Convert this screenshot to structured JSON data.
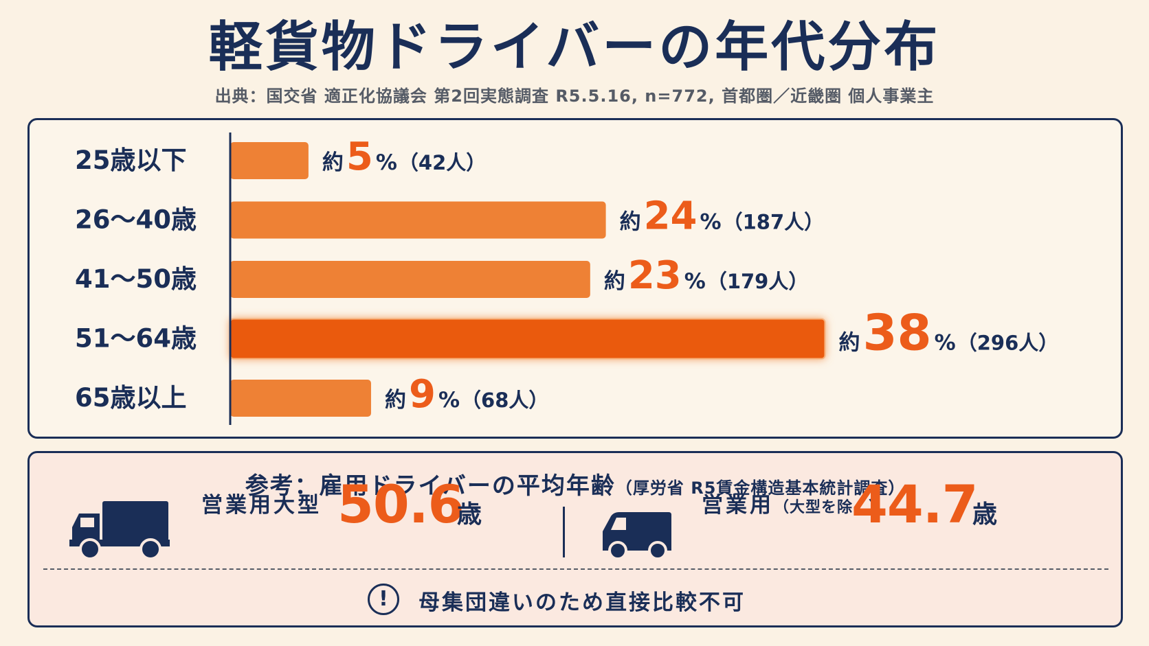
{
  "title": "軽貨物ドライバーの年代分布",
  "source": "出典：国交省 適正化協議会 第2回実態調査 R5.5.16, n=772, 首都圏／近畿圏 個人事業主",
  "chart_data": {
    "type": "bar",
    "orientation": "horizontal",
    "categories": [
      "25歳以下",
      "26～40歳",
      "41～50歳",
      "51～64歳",
      "65歳以上"
    ],
    "values": [
      5,
      24,
      23,
      38,
      9
    ],
    "counts": [
      "42人",
      "187人",
      "179人",
      "296人",
      "68人"
    ],
    "value_prefix": "約",
    "value_unit": "%",
    "highlight_index": 3,
    "xlim": [
      0,
      40
    ],
    "colors": {
      "bar": "#ee8135",
      "highlight": "#ea5a0f",
      "value": "#ec5c1a",
      "text": "#1a2e57",
      "axis": "#1a2e57"
    }
  },
  "reference": {
    "title": "参考：雇用ドライバーの平均年齢",
    "source": "（厚労省 R5賃金構造基本統計調査）",
    "items": [
      {
        "icon": "large-truck-icon",
        "label": "営業用大型",
        "note": "",
        "value": "50.6",
        "unit": "歳"
      },
      {
        "icon": "small-truck-icon",
        "label": "営業用",
        "note": "（大型を除く）",
        "value": "44.7",
        "unit": "歳"
      }
    ],
    "notice": "母集団違いのため直接比較不可"
  }
}
